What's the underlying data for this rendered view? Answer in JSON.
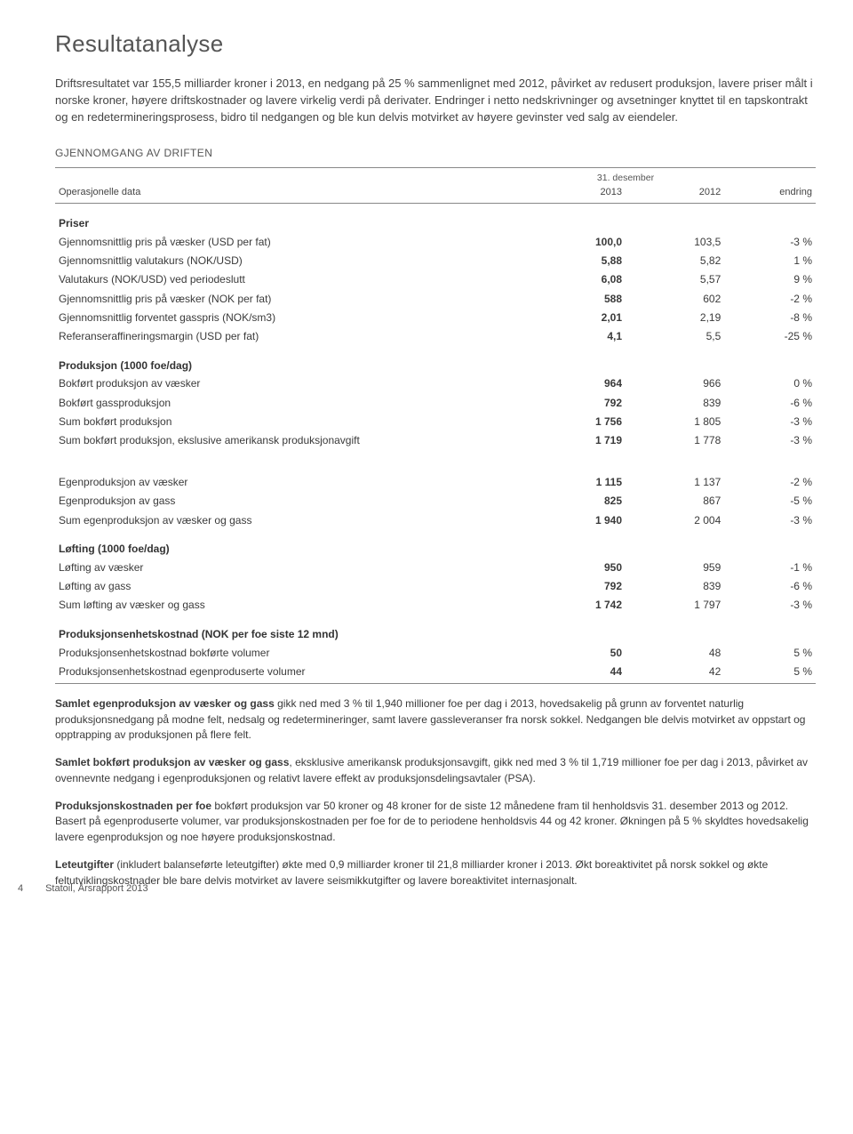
{
  "heading": "Resultatanalyse",
  "intro": "Driftsresultatet var 155,5 milliarder kroner i 2013, en nedgang på 25 % sammenlignet med 2012, påvirket av redusert produksjon, lavere priser målt i norske kroner, høyere driftskostnader og lavere virkelig verdi på derivater. Endringer i netto nedskrivninger og avsetninger knyttet til en tapskontrakt og en redetermineringsprosess, bidro til nedgangen og ble kun delvis motvirket av høyere gevinster ved salg av eiendeler.",
  "section_label": "GJENNOMGANG AV DRIFTEN",
  "table": {
    "period_label": "31. desember",
    "row_label_header": "Operasjonelle data",
    "col_2013": "2013",
    "col_2012": "2012",
    "col_change": "endring",
    "groups": [
      {
        "name": "Priser",
        "rows": [
          {
            "label": "Gjennomsnittlig pris på væsker (USD per fat)",
            "v2013": "100,0",
            "v2012": "103,5",
            "chg": "-3 %"
          },
          {
            "label": "Gjennomsnittlig valutakurs (NOK/USD)",
            "v2013": "5,88",
            "v2012": "5,82",
            "chg": "1 %"
          },
          {
            "label": "Valutakurs (NOK/USD) ved periodeslutt",
            "v2013": "6,08",
            "v2012": "5,57",
            "chg": "9 %"
          },
          {
            "label": "Gjennomsnittlig pris på væsker (NOK per fat)",
            "v2013": "588",
            "v2012": "602",
            "chg": "-2 %"
          },
          {
            "label": "Gjennomsnittlig forventet gasspris (NOK/sm3)",
            "v2013": "2,01",
            "v2012": "2,19",
            "chg": "-8 %"
          },
          {
            "label": "Referanseraffineringsmargin (USD per fat)",
            "v2013": "4,1",
            "v2012": "5,5",
            "chg": "-25 %"
          }
        ]
      },
      {
        "name": "Produksjon (1000 foe/dag)",
        "rows": [
          {
            "label": "Bokført produksjon av væsker",
            "v2013": "964",
            "v2012": "966",
            "chg": "0 %"
          },
          {
            "label": "Bokført gassproduksjon",
            "v2013": "792",
            "v2012": "839",
            "chg": "-6 %"
          },
          {
            "label": "Sum bokført produksjon",
            "v2013": "1 756",
            "v2012": "1 805",
            "chg": "-3 %"
          },
          {
            "label": "Sum bokført produksjon, ekslusive amerikansk produksjonavgift",
            "v2013": "1 719",
            "v2012": "1 778",
            "chg": "-3 %"
          }
        ]
      },
      {
        "name": "",
        "rows": [
          {
            "label": "Egenproduksjon av væsker",
            "v2013": "1 115",
            "v2012": "1 137",
            "chg": "-2 %"
          },
          {
            "label": "Egenproduksjon av gass",
            "v2013": "825",
            "v2012": "867",
            "chg": "-5 %"
          },
          {
            "label": "Sum egenproduksjon av væsker og gass",
            "v2013": "1 940",
            "v2012": "2 004",
            "chg": "-3 %"
          }
        ]
      },
      {
        "name": "Løfting (1000 foe/dag)",
        "rows": [
          {
            "label": "Løfting av væsker",
            "v2013": "950",
            "v2012": "959",
            "chg": "-1 %"
          },
          {
            "label": "Løfting av gass",
            "v2013": "792",
            "v2012": "839",
            "chg": "-6 %"
          },
          {
            "label": "Sum løfting av væsker og gass",
            "v2013": "1 742",
            "v2012": "1 797",
            "chg": "-3 %"
          }
        ]
      },
      {
        "name": "Produksjonsenhetskostnad (NOK per foe siste 12 mnd)",
        "rows": [
          {
            "label": "Produksjonsenhetskostnad bokførte volumer",
            "v2013": "50",
            "v2012": "48",
            "chg": "5 %"
          },
          {
            "label": "Produksjonsenhetskostnad egenproduserte volumer",
            "v2013": "44",
            "v2012": "42",
            "chg": "5 %"
          }
        ]
      }
    ]
  },
  "paras": [
    {
      "lead": "Samlet egenproduksjon av væsker og gass",
      "rest": " gikk ned med 3 % til 1,940 millioner foe per dag i 2013, hovedsakelig på grunn av forventet naturlig produksjonsnedgang på modne felt, nedsalg og redetermineringer, samt lavere gassleveranser fra norsk sokkel. Nedgangen ble delvis motvirket av oppstart og opptrapping av produksjonen på flere felt."
    },
    {
      "lead": "Samlet bokført produksjon av væsker og gass",
      "rest": ", eksklusive amerikansk produksjonsavgift, gikk ned med 3 % til 1,719 millioner foe per dag i 2013, påvirket av ovennevnte nedgang i egenproduksjonen og relativt lavere effekt av produksjonsdelingsavtaler (PSA)."
    },
    {
      "lead": "Produksjonskostnaden per foe",
      "rest": " bokført produksjon var 50 kroner og 48 kroner for de siste 12 månedene fram til henholdsvis 31. desember 2013 og 2012. Basert på egenproduserte volumer, var produksjonskostnaden per foe for de to periodene henholdsvis 44 og 42 kroner. Økningen på 5 % skyldtes hovedsakelig lavere egenproduksjon og noe høyere produksjonskostnad."
    },
    {
      "lead": "Leteutgifter",
      "rest": " (inkludert balanseførte leteutgifter) økte med 0,9 milliarder kroner til 21,8 milliarder kroner i 2013. Økt boreaktivitet på norsk sokkel og økte feltutviklingskostnader ble bare delvis motvirket av lavere seismikkutgifter og lavere boreaktivitet internasjonalt."
    }
  ],
  "footer": {
    "page": "4",
    "text": "Statoil, Årsrapport 2013"
  }
}
